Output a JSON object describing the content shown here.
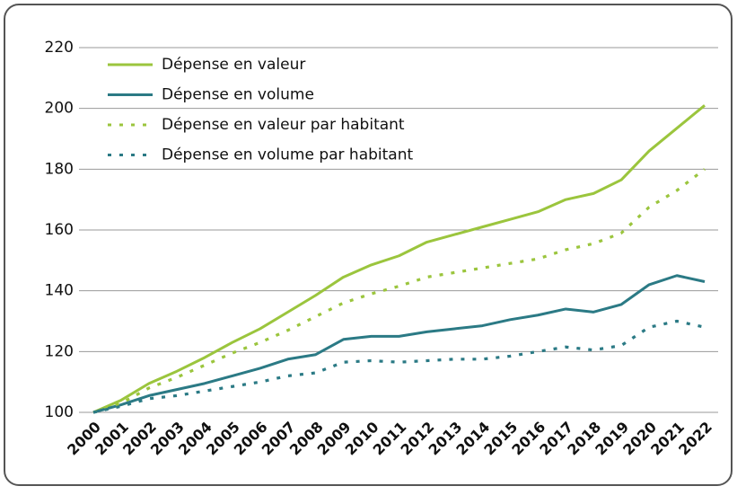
{
  "chart_data": {
    "type": "line",
    "x": [
      "2000",
      "2001",
      "2002",
      "2003",
      "2004",
      "2005",
      "2006",
      "2007",
      "2008",
      "2009",
      "2010",
      "2011",
      "2012",
      "2013",
      "2014",
      "2015",
      "2016",
      "2017",
      "2018",
      "2019",
      "2020",
      "2021",
      "2022"
    ],
    "ylim": [
      100,
      220
    ],
    "yticks": [
      100,
      120,
      140,
      160,
      180,
      200,
      220
    ],
    "grid": true,
    "legend": "upper left",
    "series": [
      {
        "name": "Dépense en valeur",
        "color": "#9bc53d",
        "dashed": false,
        "values": [
          100,
          104,
          109.5,
          113.5,
          118,
          123,
          127.5,
          133,
          138.5,
          144.5,
          148.5,
          151.5,
          156,
          158.5,
          161,
          163.5,
          166,
          170,
          172,
          176.5,
          186,
          193.5,
          201
        ]
      },
      {
        "name": "Dépense en volume",
        "color": "#2b7a85",
        "dashed": false,
        "values": [
          100,
          102.5,
          105.5,
          107.5,
          109.5,
          112,
          114.5,
          117.5,
          119,
          124,
          125,
          125,
          126.5,
          127.5,
          128.5,
          130.5,
          132,
          134,
          133,
          135.5,
          142,
          145,
          143
        ]
      },
      {
        "name": "Dépense en valeur par habitant",
        "color": "#9bc53d",
        "dashed": true,
        "values": [
          100,
          103,
          108,
          111.5,
          115.5,
          119.5,
          123,
          127,
          131.5,
          136,
          139,
          141.5,
          144.5,
          146,
          147.5,
          149,
          150.5,
          153.5,
          155.5,
          159,
          167.5,
          173,
          180
        ]
      },
      {
        "name": "Dépense en volume par habitant",
        "color": "#2b7a85",
        "dashed": true,
        "values": [
          100,
          102,
          104.5,
          105.5,
          107,
          108.5,
          110,
          112,
          113,
          116.5,
          117,
          116.5,
          117,
          117.5,
          117.5,
          118.5,
          120,
          121.5,
          120.5,
          122,
          128,
          130,
          128
        ]
      }
    ]
  }
}
